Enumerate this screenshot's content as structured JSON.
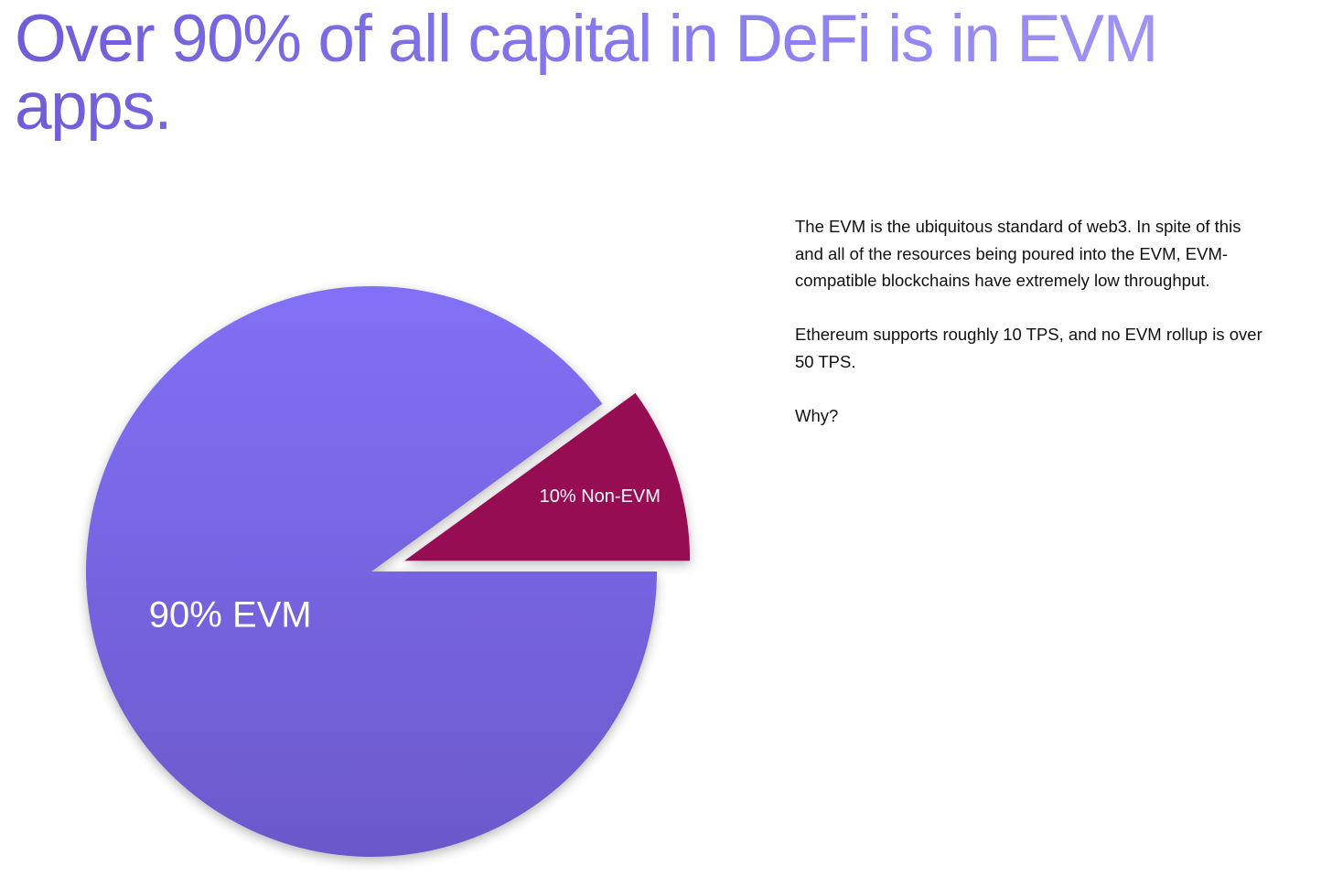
{
  "headline": "Over 90% of all capital in DeFi is in EVM apps.",
  "body": {
    "paragraph1": "The EVM is the ubiquitous standard of web3. In spite of this and all of the resources being poured into the EVM, EVM-compatible blockchains have extremely low throughput.",
    "paragraph2": "Ethereum supports roughly 10 TPS, and no EVM rollup is over 50 TPS.",
    "paragraph3": "Why?"
  },
  "chart_data": {
    "type": "pie",
    "title": "",
    "slices": [
      {
        "label": "90% EVM",
        "value": 90,
        "color": "#7a68ea",
        "exploded": false
      },
      {
        "label": "10% Non-EVM",
        "value": 10,
        "color": "#960a52",
        "exploded": true
      }
    ],
    "colors": {
      "evm_gradient_top": "#8170f6",
      "evm_gradient_bottom": "#6b59cb",
      "non_evm": "#960a52",
      "label_text": "#ffffff"
    }
  }
}
